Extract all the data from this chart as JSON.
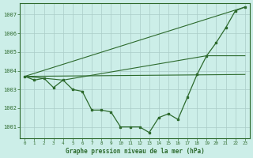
{
  "xlabel": "Graphe pression niveau de la mer (hPa)",
  "x_ticks": [
    0,
    1,
    2,
    3,
    4,
    5,
    6,
    7,
    8,
    9,
    10,
    11,
    12,
    13,
    14,
    15,
    16,
    17,
    18,
    19,
    20,
    21,
    22,
    23
  ],
  "y_ticks": [
    1001,
    1002,
    1003,
    1004,
    1005,
    1006,
    1007
  ],
  "ylim": [
    1000.4,
    1007.6
  ],
  "xlim": [
    -0.5,
    23.5
  ],
  "bg_color": "#cceee8",
  "line_color": "#2d6a2d",
  "grid_color": "#aaccc8",
  "pressure_main_x": [
    0,
    1,
    2,
    3,
    4,
    5,
    6,
    7,
    8,
    9,
    10,
    11,
    12,
    13,
    14,
    15,
    16,
    17,
    18,
    19,
    20,
    21,
    22,
    23
  ],
  "pressure_main_y": [
    1003.7,
    1003.5,
    1003.6,
    1003.1,
    1003.5,
    1003.0,
    1002.9,
    1001.9,
    1001.9,
    1001.8,
    1001.0,
    1001.0,
    1001.0,
    1000.7,
    1001.5,
    1001.7,
    1001.4,
    1002.6,
    1003.8,
    1004.8,
    1005.5,
    1006.3,
    1007.2,
    1007.4
  ],
  "line1_x": [
    0,
    23
  ],
  "line1_y": [
    1003.7,
    1003.8
  ],
  "line2_x": [
    0,
    23
  ],
  "line2_y": [
    1003.7,
    1007.4
  ],
  "line3_x": [
    0,
    2,
    4,
    19,
    23
  ],
  "line3_y": [
    1003.7,
    1003.6,
    1003.5,
    1004.8,
    1004.8
  ]
}
